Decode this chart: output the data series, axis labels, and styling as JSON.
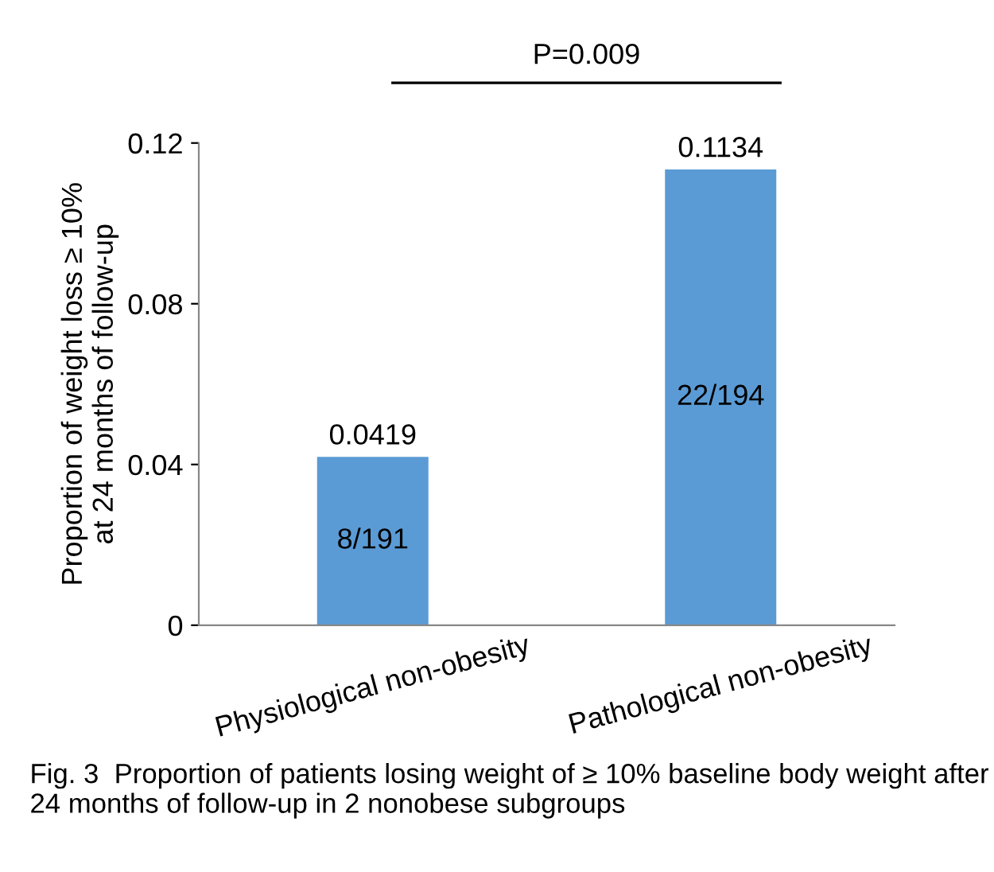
{
  "chart_data": {
    "type": "bar",
    "categories": [
      "Physiological non-obesity",
      "Pathological non-obesity"
    ],
    "values": [
      0.0419,
      0.1134
    ],
    "color": "#5b9bd5",
    "ylabel": "Proportion of weight loss ≥ 10%\nat 24 months of follow-up",
    "ylim": [
      0,
      0.12
    ],
    "yticks": [
      0,
      0.04,
      0.08,
      0.12
    ],
    "data_labels": true,
    "grid": false,
    "legend": false,
    "annotations": [
      "P=0.009",
      "8/191",
      "22/194",
      "Fig. 3  Proportion of patients losing weight of ≥ 10% baseline body weight after 24 months of follow-up in 2 nonobese subgroups"
    ]
  }
}
